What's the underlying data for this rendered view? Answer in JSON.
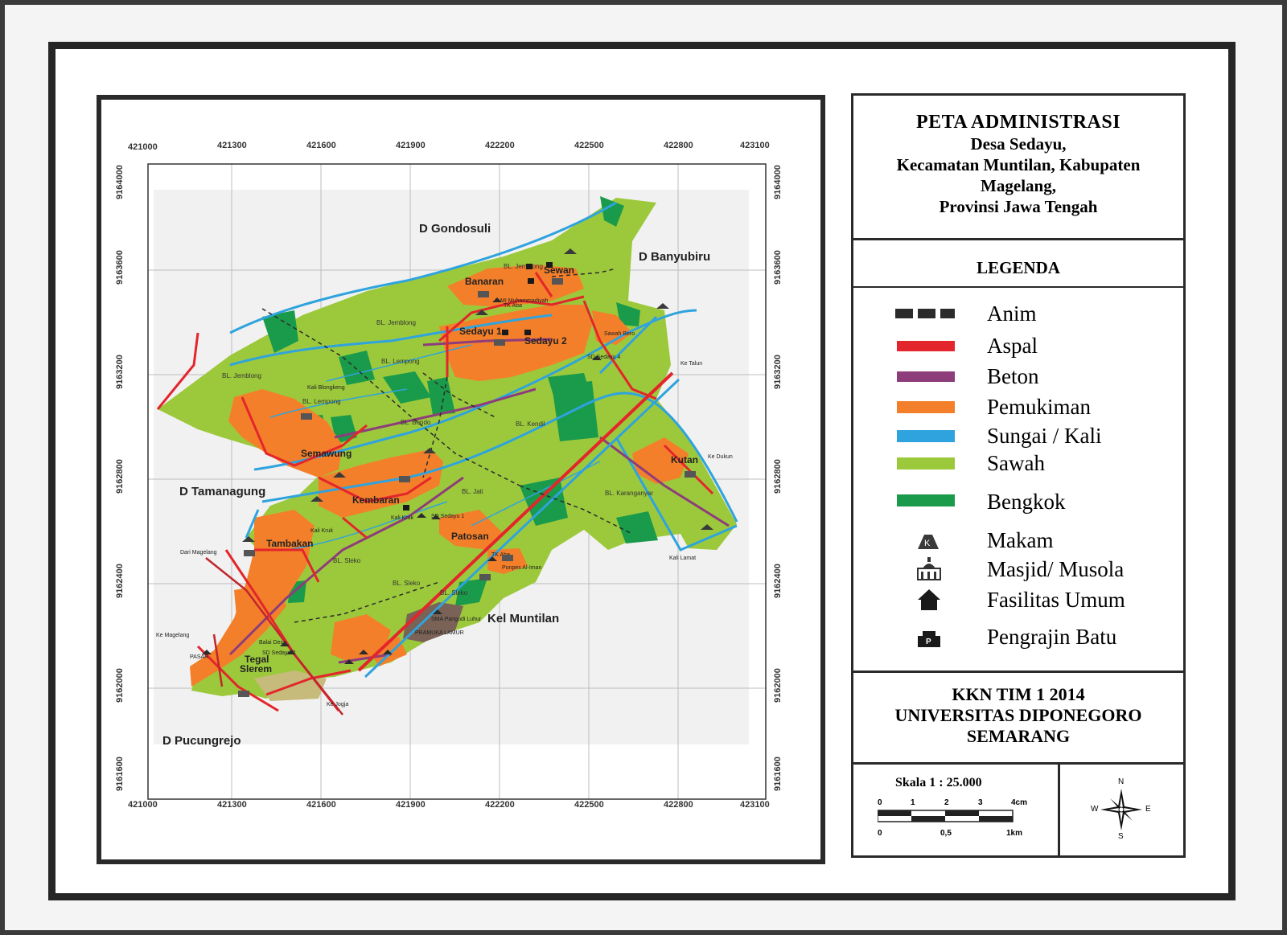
{
  "title": {
    "main": "PETA ADMINISTRASI",
    "lines": [
      "Desa Sedayu,",
      "Kecamatan Muntilan, Kabupaten",
      "Magelang,",
      "Provinsi Jawa Tengah"
    ]
  },
  "legend": {
    "heading": "LEGENDA",
    "items": [
      {
        "label": "Anim",
        "kind": "dashed",
        "color": "#2b2b2b"
      },
      {
        "label": "Aspal",
        "kind": "line",
        "color": "#e3262b"
      },
      {
        "label": "Beton",
        "kind": "line",
        "color": "#8e3d7b"
      },
      {
        "label": "Pemukiman",
        "kind": "line",
        "color": "#f47f2a"
      },
      {
        "label": "Sungai / Kali",
        "kind": "line",
        "color": "#2fa3de"
      },
      {
        "label": "Sawah",
        "kind": "line",
        "color": "#9cc93b"
      },
      {
        "label": "Bengkok",
        "kind": "line",
        "color": "#1a9a4b"
      },
      {
        "label": "Makam",
        "kind": "makam-icon"
      },
      {
        "label": "Masjid/ Musola",
        "kind": "masjid-icon"
      },
      {
        "label": "Fasilitas Umum",
        "kind": "fasilitas-icon"
      },
      {
        "label": "Pengrajin Batu",
        "kind": "pengrajin-icon"
      }
    ]
  },
  "footer": {
    "lines": [
      "KKN TIM 1 2014",
      "UNIVERSITAS DIPONEGORO",
      "SEMARANG"
    ]
  },
  "scale": {
    "title": "Skala 1 : 25.000",
    "top_labels": [
      "0",
      "1",
      "2",
      "3",
      "4cm"
    ],
    "bottom_labels": [
      "0",
      "0,5",
      "1km"
    ]
  },
  "compass": {
    "n": "N",
    "s": "S",
    "e": "E",
    "w": "W"
  },
  "grid": {
    "x_labels": [
      "421000",
      "421300",
      "421600",
      "421900",
      "422200",
      "422500",
      "422800",
      "423100"
    ],
    "y_labels": [
      "9164000",
      "9163600",
      "9163200",
      "9162800",
      "9162400",
      "9162000",
      "9161600"
    ]
  },
  "neighbors": [
    {
      "label": "D Gondosuli"
    },
    {
      "label": "D Banyubiru"
    },
    {
      "label": "D Tamanagung"
    },
    {
      "label": "D Pucungrejo"
    },
    {
      "label": "Kel Muntilan"
    }
  ],
  "hamlets": [
    "Banaran",
    "Sewan",
    "Sedayu 1",
    "Sedayu 2",
    "Semawung",
    "Kembaran",
    "Tambakan",
    "Patosan",
    "Kutan",
    "Tegal",
    "Slerem"
  ],
  "blocks": [
    "BL. Jemblong",
    "BL. Jemblong",
    "BL. Jemblong",
    "BL. Lempong",
    "BL. Lempong",
    "BL. Bendo",
    "BL. Kendil",
    "BL. Jati",
    "BL. Karanganyar",
    "BL. Sleko",
    "BL. Sleko",
    "BL. Sleko"
  ],
  "small_labels": [
    "Ke Talun",
    "Ke Dukun",
    "Dari Magelang",
    "Ke Magelang",
    "Ke Jogja",
    "Sawah Bero",
    "SD Sedayu 4",
    "SD Sedayu 1",
    "SD Sedayu 2",
    "Ponpes Al-Iman",
    "TK Aba",
    "Kali Kruk",
    "Kali Lamat",
    "Kali Blongkeng",
    "PASAR",
    "Balai Desa",
    "MI Muhammadiyah",
    "TK Aba",
    "Kali Kruk",
    "PRAMUKA LAMUR",
    "SMA Pangudi Luhur"
  ]
}
